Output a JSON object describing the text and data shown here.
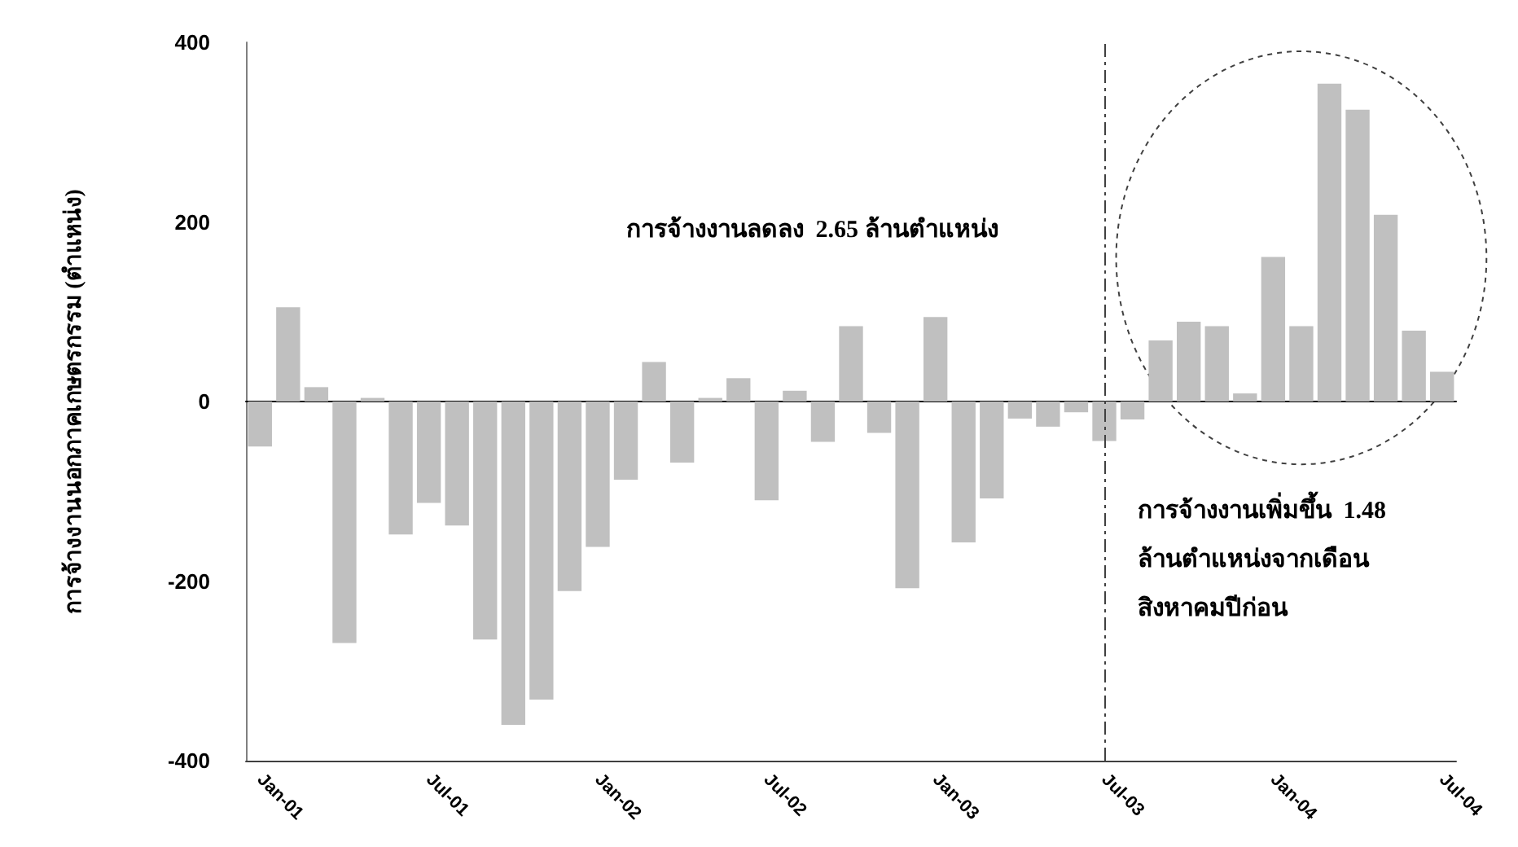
{
  "chart_data": {
    "type": "bar",
    "ylabel": "การจ้างงานนอกภาคเกษตรกรรม (ตำแหน่ง)",
    "categories": [
      "Jan-01",
      null,
      null,
      null,
      null,
      null,
      "Jul-01",
      null,
      null,
      null,
      null,
      null,
      "Jan-02",
      null,
      null,
      null,
      null,
      null,
      "Jul-02",
      null,
      null,
      null,
      null,
      null,
      "Jan-03",
      null,
      null,
      null,
      null,
      null,
      "Jul-03",
      null,
      null,
      null,
      null,
      null,
      "Jan-04",
      null,
      null,
      null,
      null,
      null,
      "Jul-04"
    ],
    "values": [
      -50,
      105,
      16,
      -269,
      4,
      -148,
      -113,
      -138,
      -265,
      -360,
      -332,
      -211,
      -162,
      -87,
      44,
      -68,
      4,
      26,
      -110,
      12,
      -45,
      84,
      -35,
      -208,
      94,
      -157,
      -108,
      -19,
      -28,
      -12,
      -44,
      -20,
      68,
      89,
      84,
      9,
      161,
      84,
      354,
      325,
      208,
      79,
      33
    ],
    "color": "#c0c0c0",
    "ylim": [
      -400,
      400
    ],
    "yticks": [
      -400,
      -200,
      0,
      200,
      400
    ],
    "grid": false,
    "ref_lines": [
      {
        "axis": "x",
        "value": "Jul-03",
        "line_style": "dashed",
        "color": "#404040"
      }
    ],
    "annotations": [
      "การจ้างงานลดลง  2.65 ล้านตำแหน่ง",
      "การจ้างงานเพิ่มขึ้น  1.48\nล้านตำแหน่งจากเดือน\nสิงหาคมปีก่อน"
    ]
  }
}
